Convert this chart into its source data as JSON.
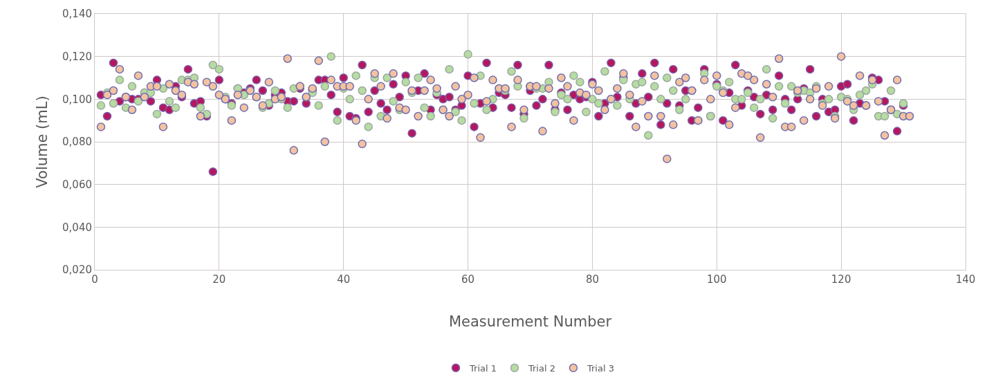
{
  "chart_data": {
    "type": "scatter",
    "xlabel": "Measurement Number",
    "ylabel": "Volume (mL)",
    "xlim": [
      0,
      140
    ],
    "xticks": [
      0,
      20,
      40,
      60,
      80,
      100,
      120,
      140
    ],
    "ylim": [
      0.02,
      0.14
    ],
    "yticks": [
      {
        "value": 0.02,
        "label": "0,020"
      },
      {
        "value": 0.04,
        "label": "0,040"
      },
      {
        "value": 0.06,
        "label": "0,060"
      },
      {
        "value": 0.08,
        "label": "0,080"
      },
      {
        "value": 0.1,
        "label": "0,100"
      },
      {
        "value": 0.12,
        "label": "0,120"
      },
      {
        "value": 0.14,
        "label": "0,140"
      }
    ],
    "grid": true,
    "legend": "bottom",
    "marker": "circle",
    "series": [
      {
        "name": "Trial 1",
        "color": "#b5175e",
        "x": [
          1,
          2,
          3,
          4,
          5,
          6,
          7,
          8,
          9,
          10,
          11,
          12,
          13,
          14,
          15,
          16,
          17,
          18,
          19,
          20,
          21,
          22,
          23,
          24,
          25,
          26,
          27,
          28,
          29,
          30,
          31,
          32,
          33,
          34,
          35,
          36,
          37,
          38,
          39,
          40,
          41,
          42,
          43,
          44,
          45,
          46,
          47,
          48,
          49,
          50,
          51,
          52,
          53,
          54,
          55,
          56,
          57,
          58,
          59,
          60,
          61,
          62,
          63,
          64,
          65,
          66,
          67,
          68,
          69,
          70,
          71,
          72,
          73,
          74,
          75,
          76,
          77,
          78,
          79,
          80,
          81,
          82,
          83,
          84,
          85,
          86,
          87,
          88,
          89,
          90,
          91,
          92,
          93,
          94,
          95,
          96,
          97,
          98,
          99,
          100,
          101,
          102,
          103,
          104,
          105,
          106,
          107,
          108,
          109,
          110,
          111,
          112,
          113,
          114,
          115,
          116,
          117,
          118,
          119,
          120,
          121,
          122,
          123,
          124,
          125,
          126,
          127,
          128,
          129,
          130
        ],
        "values": [
          0.102,
          0.092,
          0.117,
          0.099,
          0.101,
          0.1,
          0.1,
          0.103,
          0.099,
          0.109,
          0.096,
          0.095,
          0.106,
          0.101,
          0.114,
          0.098,
          0.099,
          0.092,
          0.066,
          0.109,
          0.1,
          0.098,
          0.105,
          0.103,
          0.105,
          0.109,
          0.104,
          0.097,
          0.102,
          0.103,
          0.099,
          0.099,
          0.105,
          0.098,
          0.104,
          0.109,
          0.109,
          0.102,
          0.094,
          0.11,
          0.092,
          0.091,
          0.116,
          0.094,
          0.104,
          0.098,
          0.095,
          0.107,
          0.101,
          0.111,
          0.084,
          0.104,
          0.112,
          0.095,
          0.102,
          0.1,
          0.101,
          0.095,
          0.097,
          0.111,
          0.087,
          0.098,
          0.117,
          0.096,
          0.103,
          0.102,
          0.096,
          0.116,
          0.093,
          0.104,
          0.097,
          0.1,
          0.116,
          0.095,
          0.103,
          0.095,
          0.102,
          0.1,
          0.101,
          0.108,
          0.092,
          0.098,
          0.117,
          0.101,
          0.11,
          0.092,
          0.098,
          0.112,
          0.101,
          0.117,
          0.088,
          0.098,
          0.114,
          0.097,
          0.104,
          0.09,
          0.096,
          0.114,
          0.092,
          0.107,
          0.09,
          0.103,
          0.116,
          0.097,
          0.104,
          0.101,
          0.093,
          0.102,
          0.095,
          0.111,
          0.1,
          0.095,
          0.1,
          0.105,
          0.114,
          0.092,
          0.1,
          0.094,
          0.095,
          0.106,
          0.107,
          0.09,
          0.098,
          0.097,
          0.11,
          0.109,
          0.099,
          0.095,
          0.085,
          0.097
        ]
      },
      {
        "name": "Trial 2",
        "color": "#b7dba2",
        "x": [
          1,
          2,
          3,
          4,
          5,
          6,
          7,
          8,
          9,
          10,
          11,
          12,
          13,
          14,
          15,
          16,
          17,
          18,
          19,
          20,
          21,
          22,
          23,
          24,
          25,
          26,
          27,
          28,
          29,
          30,
          31,
          32,
          33,
          34,
          35,
          36,
          37,
          38,
          39,
          40,
          41,
          42,
          43,
          44,
          45,
          46,
          47,
          48,
          49,
          50,
          51,
          52,
          53,
          54,
          55,
          56,
          57,
          58,
          59,
          60,
          61,
          62,
          63,
          64,
          65,
          66,
          67,
          68,
          69,
          70,
          71,
          72,
          73,
          74,
          75,
          76,
          77,
          78,
          79,
          80,
          81,
          82,
          83,
          84,
          85,
          86,
          87,
          88,
          89,
          90,
          91,
          92,
          93,
          94,
          95,
          96,
          97,
          98,
          99,
          100,
          101,
          102,
          103,
          104,
          105,
          106,
          107,
          108,
          109,
          110,
          111,
          112,
          113,
          114,
          115,
          116,
          117,
          118,
          119,
          120,
          121,
          122,
          123,
          124,
          125,
          126,
          127,
          128,
          129,
          130
        ],
        "values": [
          0.097,
          0.103,
          0.098,
          0.109,
          0.096,
          0.106,
          0.099,
          0.103,
          0.103,
          0.093,
          0.105,
          0.099,
          0.096,
          0.109,
          0.109,
          0.11,
          0.096,
          0.093,
          0.116,
          0.114,
          0.101,
          0.097,
          0.105,
          0.102,
          0.104,
          0.101,
          0.096,
          0.098,
          0.104,
          0.1,
          0.096,
          0.105,
          0.106,
          0.101,
          0.103,
          0.097,
          0.106,
          0.12,
          0.09,
          0.105,
          0.1,
          0.111,
          0.104,
          0.087,
          0.11,
          0.092,
          0.11,
          0.099,
          0.095,
          0.108,
          0.103,
          0.11,
          0.096,
          0.092,
          0.103,
          0.095,
          0.114,
          0.094,
          0.09,
          0.121,
          0.098,
          0.111,
          0.095,
          0.1,
          0.105,
          0.104,
          0.113,
          0.106,
          0.091,
          0.106,
          0.105,
          0.105,
          0.108,
          0.094,
          0.102,
          0.1,
          0.111,
          0.108,
          0.094,
          0.1,
          0.098,
          0.113,
          0.1,
          0.097,
          0.109,
          0.1,
          0.107,
          0.108,
          0.083,
          0.106,
          0.1,
          0.11,
          0.104,
          0.095,
          0.1,
          0.104,
          0.09,
          0.112,
          0.092,
          0.106,
          0.104,
          0.108,
          0.1,
          0.1,
          0.103,
          0.096,
          0.1,
          0.114,
          0.091,
          0.106,
          0.098,
          0.106,
          0.103,
          0.104,
          0.103,
          0.106,
          0.098,
          0.1,
          0.092,
          0.101,
          0.1,
          0.095,
          0.102,
          0.104,
          0.107,
          0.092,
          0.092,
          0.104,
          0.093,
          0.098
        ]
      },
      {
        "name": "Trial 3",
        "color": "#f3c2a0",
        "x": [
          1,
          2,
          3,
          4,
          5,
          6,
          7,
          8,
          9,
          10,
          11,
          12,
          13,
          14,
          15,
          16,
          17,
          18,
          19,
          20,
          21,
          22,
          23,
          24,
          25,
          26,
          27,
          28,
          29,
          30,
          31,
          32,
          33,
          34,
          35,
          36,
          37,
          38,
          39,
          40,
          41,
          42,
          43,
          44,
          45,
          46,
          47,
          48,
          49,
          50,
          51,
          52,
          53,
          54,
          55,
          56,
          57,
          58,
          59,
          60,
          61,
          62,
          63,
          64,
          65,
          66,
          67,
          68,
          69,
          70,
          71,
          72,
          73,
          74,
          75,
          76,
          77,
          78,
          79,
          80,
          81,
          82,
          83,
          84,
          85,
          86,
          87,
          88,
          89,
          90,
          91,
          92,
          93,
          94,
          95,
          96,
          97,
          98,
          99,
          100,
          101,
          102,
          103,
          104,
          105,
          106,
          107,
          108,
          109,
          110,
          111,
          112,
          113,
          114,
          115,
          116,
          117,
          118,
          119,
          120,
          121,
          122,
          123,
          124,
          125,
          126,
          127,
          128,
          129,
          130,
          131
        ],
        "values": [
          0.087,
          0.102,
          0.104,
          0.114,
          0.101,
          0.095,
          0.111,
          0.101,
          0.106,
          0.106,
          0.087,
          0.107,
          0.104,
          0.102,
          0.108,
          0.107,
          0.092,
          0.108,
          0.106,
          0.102,
          0.1,
          0.09,
          0.102,
          0.096,
          0.104,
          0.101,
          0.097,
          0.108,
          0.1,
          0.101,
          0.119,
          0.076,
          0.106,
          0.101,
          0.105,
          0.118,
          0.08,
          0.109,
          0.106,
          0.106,
          0.106,
          0.09,
          0.079,
          0.1,
          0.112,
          0.106,
          0.091,
          0.112,
          0.096,
          0.095,
          0.104,
          0.092,
          0.104,
          0.109,
          0.105,
          0.095,
          0.092,
          0.106,
          0.1,
          0.102,
          0.11,
          0.082,
          0.099,
          0.109,
          0.105,
          0.105,
          0.087,
          0.109,
          0.095,
          0.106,
          0.106,
          0.085,
          0.105,
          0.098,
          0.11,
          0.106,
          0.09,
          0.103,
          0.102,
          0.107,
          0.104,
          0.095,
          0.1,
          0.105,
          0.112,
          0.102,
          0.087,
          0.099,
          0.092,
          0.111,
          0.092,
          0.072,
          0.088,
          0.108,
          0.11,
          0.104,
          0.09,
          0.109,
          0.1,
          0.111,
          0.103,
          0.088,
          0.096,
          0.112,
          0.111,
          0.109,
          0.082,
          0.107,
          0.101,
          0.119,
          0.087,
          0.087,
          0.104,
          0.09,
          0.1,
          0.105,
          0.097,
          0.106,
          0.091,
          0.12,
          0.099,
          0.097,
          0.111,
          0.097,
          0.109,
          0.099,
          0.083,
          0.095,
          0.109,
          0.092,
          0.092
        ]
      }
    ]
  }
}
